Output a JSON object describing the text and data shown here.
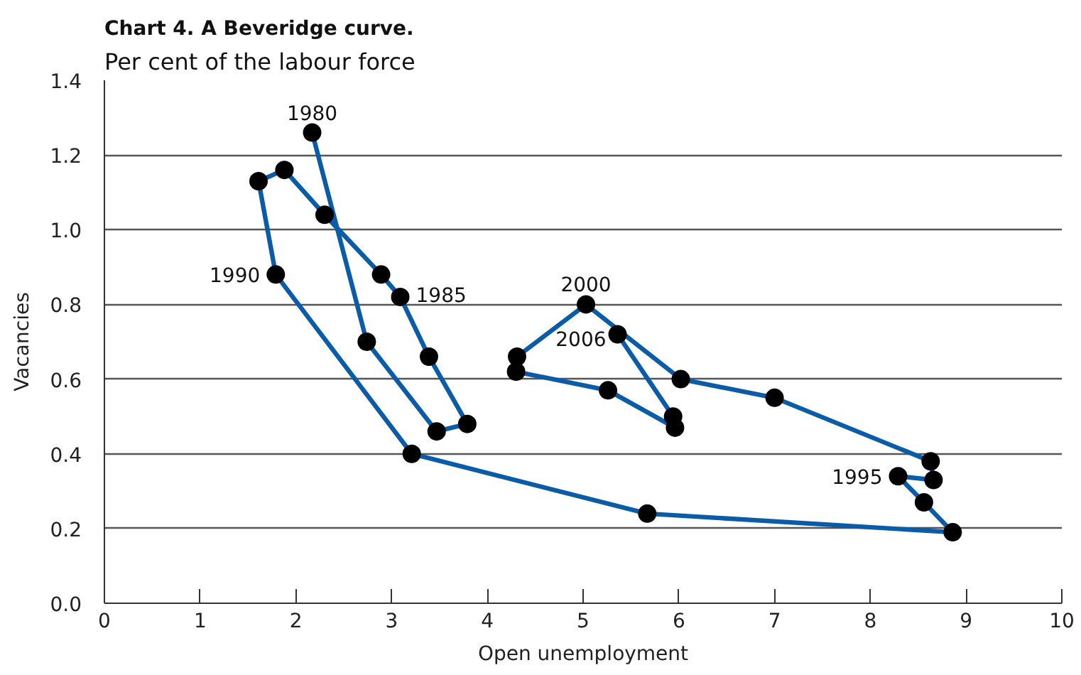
{
  "chart_data": {
    "type": "line",
    "title": "Chart 4. A Beveridge curve.",
    "subtitle": "Per cent of the labour force",
    "xlabel": "Open unemployment",
    "ylabel": "Vacancies",
    "xlim": [
      0,
      10
    ],
    "xticks": [
      0,
      1,
      2,
      3,
      4,
      5,
      6,
      7,
      8,
      9,
      10
    ],
    "ylim": [
      0,
      1.4
    ],
    "yticks": [
      {
        "value": 0,
        "label": "0.0"
      },
      0.2,
      0.4,
      0.6,
      0.8,
      {
        "value": 1,
        "label": "1.0"
      },
      1.2,
      1.4
    ],
    "grid": "y",
    "marker": "circle",
    "line_style": "solid",
    "series": [
      {
        "color": "#0a5ca8",
        "colors": [
          "#000000",
          "#000000",
          "#000000",
          "#000000",
          "#000000",
          "#000000",
          "#000000",
          "#000000",
          "#000000",
          "#000000",
          "#000000",
          "#000000",
          "#000000",
          "#000000",
          "#000000",
          "#000000",
          "#000000",
          "#000000",
          "#000000",
          "#000000",
          "#000000",
          "#000000",
          "#000000",
          "#000000",
          "#000000",
          "#000000",
          "#000000"
        ],
        "x": [
          2.17,
          2.74,
          3.47,
          3.79,
          3.39,
          3.09,
          2.89,
          2.3,
          1.88,
          1.61,
          1.79,
          3.21,
          5.67,
          8.86,
          8.56,
          8.29,
          8.66,
          8.63,
          7.0,
          6.02,
          5.03,
          4.31,
          4.3,
          5.26,
          5.96,
          5.94,
          5.36
        ],
        "values": [
          1.26,
          0.7,
          0.46,
          0.48,
          0.66,
          0.82,
          0.88,
          1.04,
          1.16,
          1.13,
          0.88,
          0.4,
          0.24,
          0.19,
          0.27,
          0.34,
          0.33,
          0.38,
          0.55,
          0.6,
          0.8,
          0.66,
          0.62,
          0.57,
          0.47,
          0.5,
          0.72
        ]
      }
    ],
    "annotations": [
      {
        "text": "1980",
        "x": 2.17,
        "y": 1.26
      },
      {
        "text": "1985",
        "x": 3.09,
        "y": 0.82
      },
      {
        "text": "1990",
        "x": 1.79,
        "y": 0.88
      },
      {
        "text": "1995",
        "x": 8.29,
        "y": 0.34
      },
      {
        "text": "2000",
        "x": 5.03,
        "y": 0.8
      },
      {
        "text": "2006",
        "x": 5.36,
        "y": 0.72
      }
    ]
  }
}
